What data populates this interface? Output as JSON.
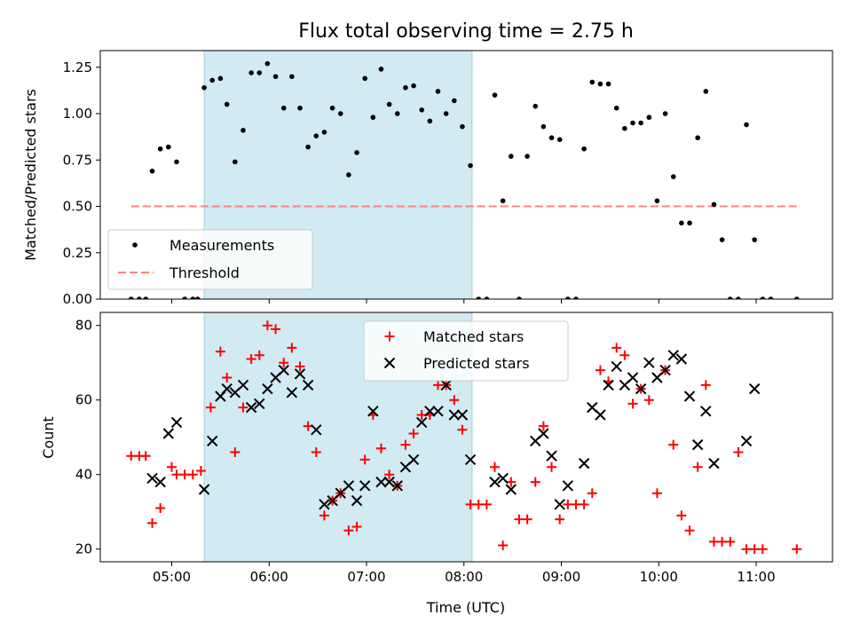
{
  "chart_data": [
    {
      "type": "scatter",
      "title": "Flux total observing time = 2.75 h",
      "xlabel": "",
      "ylabel": "Matched/Predicted stars",
      "xlim": [
        "04:16",
        "11:47"
      ],
      "ylim": [
        0,
        1.34
      ],
      "x_tick_labels": [],
      "y_ticks": [
        0.0,
        0.25,
        0.5,
        0.75,
        1.0,
        1.25
      ],
      "y_tick_labels": [
        "0.00",
        "0.25",
        "0.50",
        "0.75",
        "1.00",
        "1.25"
      ],
      "shaded_region": {
        "x": [
          "05:20",
          "08:05"
        ],
        "color": "#add8e6"
      },
      "threshold": {
        "name": "Threshold",
        "y": 0.5,
        "x": [
          "04:35",
          "11:25"
        ],
        "color": "#ff8080"
      },
      "legend": {
        "placement": "lower-left",
        "entries": [
          "Measurements",
          "Threshold"
        ]
      },
      "series": [
        {
          "name": "Measurements",
          "color": "#000000",
          "marker": "dot",
          "points": [
            [
              "04:35",
              0.0
            ],
            [
              "04:40",
              0.0
            ],
            [
              "04:44",
              0.0
            ],
            [
              "04:48",
              0.69
            ],
            [
              "04:53",
              0.81
            ],
            [
              "04:58",
              0.82
            ],
            [
              "05:03",
              0.74
            ],
            [
              "05:08",
              0.0
            ],
            [
              "05:13",
              0.0
            ],
            [
              "05:16",
              0.0
            ],
            [
              "05:20",
              1.14
            ],
            [
              "05:25",
              1.18
            ],
            [
              "05:30",
              1.19
            ],
            [
              "05:34",
              1.05
            ],
            [
              "05:39",
              0.74
            ],
            [
              "05:44",
              0.91
            ],
            [
              "05:49",
              1.22
            ],
            [
              "05:54",
              1.22
            ],
            [
              "05:59",
              1.27
            ],
            [
              "06:04",
              1.2
            ],
            [
              "06:09",
              1.03
            ],
            [
              "06:14",
              1.2
            ],
            [
              "06:19",
              1.03
            ],
            [
              "06:24",
              0.82
            ],
            [
              "06:29",
              0.88
            ],
            [
              "06:34",
              0.9
            ],
            [
              "06:39",
              1.03
            ],
            [
              "06:44",
              1.0
            ],
            [
              "06:49",
              0.67
            ],
            [
              "06:54",
              0.79
            ],
            [
              "06:59",
              1.19
            ],
            [
              "07:04",
              0.98
            ],
            [
              "07:09",
              1.24
            ],
            [
              "07:14",
              1.05
            ],
            [
              "07:19",
              1.0
            ],
            [
              "07:24",
              1.14
            ],
            [
              "07:29",
              1.15
            ],
            [
              "07:34",
              1.02
            ],
            [
              "07:39",
              0.96
            ],
            [
              "07:44",
              1.12
            ],
            [
              "07:49",
              1.0
            ],
            [
              "07:54",
              1.07
            ],
            [
              "07:59",
              0.93
            ],
            [
              "08:04",
              0.72
            ],
            [
              "08:09",
              0.0
            ],
            [
              "08:14",
              0.0
            ],
            [
              "08:19",
              1.1
            ],
            [
              "08:24",
              0.53
            ],
            [
              "08:29",
              0.77
            ],
            [
              "08:34",
              0.0
            ],
            [
              "08:39",
              0.77
            ],
            [
              "08:44",
              1.04
            ],
            [
              "08:49",
              0.93
            ],
            [
              "08:54",
              0.87
            ],
            [
              "08:59",
              0.86
            ],
            [
              "09:04",
              0.0
            ],
            [
              "09:09",
              0.0
            ],
            [
              "09:14",
              0.81
            ],
            [
              "09:19",
              1.17
            ],
            [
              "09:24",
              1.16
            ],
            [
              "09:29",
              1.16
            ],
            [
              "09:34",
              1.03
            ],
            [
              "09:39",
              0.92
            ],
            [
              "09:44",
              0.95
            ],
            [
              "09:49",
              0.95
            ],
            [
              "09:54",
              0.98
            ],
            [
              "09:59",
              0.53
            ],
            [
              "10:04",
              1.0
            ],
            [
              "10:09",
              0.66
            ],
            [
              "10:14",
              0.41
            ],
            [
              "10:19",
              0.41
            ],
            [
              "10:24",
              0.87
            ],
            [
              "10:29",
              1.12
            ],
            [
              "10:34",
              0.51
            ],
            [
              "10:39",
              0.32
            ],
            [
              "10:44",
              0.0
            ],
            [
              "10:49",
              0.0
            ],
            [
              "10:54",
              0.94
            ],
            [
              "10:59",
              0.32
            ],
            [
              "11:04",
              0.0
            ],
            [
              "11:09",
              0.0
            ],
            [
              "11:25",
              0.0
            ]
          ]
        }
      ]
    },
    {
      "type": "scatter",
      "title": "",
      "xlabel": "Time (UTC)",
      "ylabel": "Count",
      "xlim": [
        "04:16",
        "11:47"
      ],
      "ylim": [
        16.6,
        83.5
      ],
      "x_ticks": [
        "05:00",
        "06:00",
        "07:00",
        "08:00",
        "09:00",
        "10:00",
        "11:00"
      ],
      "x_tick_labels": [
        "05:00",
        "06:00",
        "07:00",
        "08:00",
        "09:00",
        "10:00",
        "11:00"
      ],
      "y_ticks": [
        20,
        40,
        60,
        80
      ],
      "y_tick_labels": [
        "20",
        "40",
        "60",
        "80"
      ],
      "shaded_region": {
        "x": [
          "05:20",
          "08:05"
        ],
        "color": "#add8e6"
      },
      "legend": {
        "placement": "upper-center",
        "entries": [
          "Matched stars",
          "Predicted stars"
        ]
      },
      "series": [
        {
          "name": "Matched stars",
          "color": "#ff0000",
          "marker": "plus",
          "points": [
            [
              "04:35",
              45
            ],
            [
              "04:40",
              45
            ],
            [
              "04:44",
              45
            ],
            [
              "04:48",
              27
            ],
            [
              "04:53",
              31
            ],
            [
              "05:00",
              42
            ],
            [
              "05:03",
              40
            ],
            [
              "05:08",
              40
            ],
            [
              "05:13",
              40
            ],
            [
              "05:18",
              41
            ],
            [
              "05:24",
              58
            ],
            [
              "05:30",
              73
            ],
            [
              "05:34",
              66
            ],
            [
              "05:39",
              46
            ],
            [
              "05:44",
              58
            ],
            [
              "05:49",
              71
            ],
            [
              "05:54",
              72
            ],
            [
              "05:59",
              80
            ],
            [
              "06:04",
              79
            ],
            [
              "06:09",
              70
            ],
            [
              "06:14",
              74
            ],
            [
              "06:19",
              69
            ],
            [
              "06:24",
              53
            ],
            [
              "06:29",
              46
            ],
            [
              "06:34",
              29
            ],
            [
              "06:39",
              33
            ],
            [
              "06:44",
              35
            ],
            [
              "06:49",
              25
            ],
            [
              "06:54",
              26
            ],
            [
              "06:59",
              44
            ],
            [
              "07:04",
              56
            ],
            [
              "07:09",
              47
            ],
            [
              "07:14",
              40
            ],
            [
              "07:19",
              37
            ],
            [
              "07:24",
              48
            ],
            [
              "07:29",
              51
            ],
            [
              "07:34",
              56
            ],
            [
              "07:39",
              56
            ],
            [
              "07:44",
              64
            ],
            [
              "07:49",
              64
            ],
            [
              "07:54",
              60
            ],
            [
              "07:59",
              52
            ],
            [
              "08:04",
              32
            ],
            [
              "08:09",
              32
            ],
            [
              "08:14",
              32
            ],
            [
              "08:19",
              42
            ],
            [
              "08:24",
              21
            ],
            [
              "08:29",
              38
            ],
            [
              "08:34",
              28
            ],
            [
              "08:39",
              28
            ],
            [
              "08:44",
              38
            ],
            [
              "08:49",
              53
            ],
            [
              "08:54",
              42
            ],
            [
              "08:59",
              28
            ],
            [
              "09:04",
              32
            ],
            [
              "09:09",
              32
            ],
            [
              "09:14",
              32
            ],
            [
              "09:19",
              35
            ],
            [
              "09:24",
              68
            ],
            [
              "09:29",
              65
            ],
            [
              "09:34",
              74
            ],
            [
              "09:39",
              72
            ],
            [
              "09:44",
              59
            ],
            [
              "09:49",
              63
            ],
            [
              "09:54",
              60
            ],
            [
              "09:59",
              35
            ],
            [
              "10:04",
              68
            ],
            [
              "10:09",
              48
            ],
            [
              "10:14",
              29
            ],
            [
              "10:19",
              25
            ],
            [
              "10:24",
              42
            ],
            [
              "10:29",
              64
            ],
            [
              "10:34",
              22
            ],
            [
              "10:39",
              22
            ],
            [
              "10:44",
              22
            ],
            [
              "10:49",
              46
            ],
            [
              "10:54",
              20
            ],
            [
              "10:59",
              20
            ],
            [
              "11:04",
              20
            ],
            [
              "11:25",
              20
            ]
          ]
        },
        {
          "name": "Predicted stars",
          "color": "#000000",
          "marker": "x",
          "points": [
            [
              "04:48",
              39
            ],
            [
              "04:53",
              38
            ],
            [
              "04:58",
              51
            ],
            [
              "05:03",
              54
            ],
            [
              "05:20",
              36
            ],
            [
              "05:25",
              49
            ],
            [
              "05:30",
              61
            ],
            [
              "05:34",
              63
            ],
            [
              "05:39",
              62
            ],
            [
              "05:44",
              64
            ],
            [
              "05:49",
              58
            ],
            [
              "05:54",
              59
            ],
            [
              "05:59",
              63
            ],
            [
              "06:04",
              66
            ],
            [
              "06:09",
              68
            ],
            [
              "06:14",
              62
            ],
            [
              "06:19",
              67
            ],
            [
              "06:24",
              64
            ],
            [
              "06:29",
              52
            ],
            [
              "06:34",
              32
            ],
            [
              "06:39",
              33
            ],
            [
              "06:44",
              35
            ],
            [
              "06:49",
              37
            ],
            [
              "06:54",
              33
            ],
            [
              "06:59",
              37
            ],
            [
              "07:04",
              57
            ],
            [
              "07:09",
              38
            ],
            [
              "07:14",
              38
            ],
            [
              "07:19",
              37
            ],
            [
              "07:24",
              42
            ],
            [
              "07:29",
              44
            ],
            [
              "07:34",
              54
            ],
            [
              "07:39",
              57
            ],
            [
              "07:44",
              57
            ],
            [
              "07:49",
              64
            ],
            [
              "07:54",
              56
            ],
            [
              "07:59",
              56
            ],
            [
              "08:04",
              44
            ],
            [
              "08:19",
              38
            ],
            [
              "08:24",
              39
            ],
            [
              "08:29",
              36
            ],
            [
              "08:44",
              49
            ],
            [
              "08:49",
              51
            ],
            [
              "08:54",
              45
            ],
            [
              "08:59",
              32
            ],
            [
              "09:04",
              37
            ],
            [
              "09:14",
              43
            ],
            [
              "09:19",
              58
            ],
            [
              "09:24",
              56
            ],
            [
              "09:29",
              64
            ],
            [
              "09:34",
              69
            ],
            [
              "09:39",
              64
            ],
            [
              "09:44",
              66
            ],
            [
              "09:49",
              63
            ],
            [
              "09:54",
              70
            ],
            [
              "09:59",
              66
            ],
            [
              "10:04",
              68
            ],
            [
              "10:09",
              72
            ],
            [
              "10:14",
              71
            ],
            [
              "10:19",
              61
            ],
            [
              "10:24",
              48
            ],
            [
              "10:29",
              57
            ],
            [
              "10:34",
              43
            ],
            [
              "10:54",
              49
            ],
            [
              "10:59",
              63
            ]
          ]
        }
      ]
    }
  ]
}
